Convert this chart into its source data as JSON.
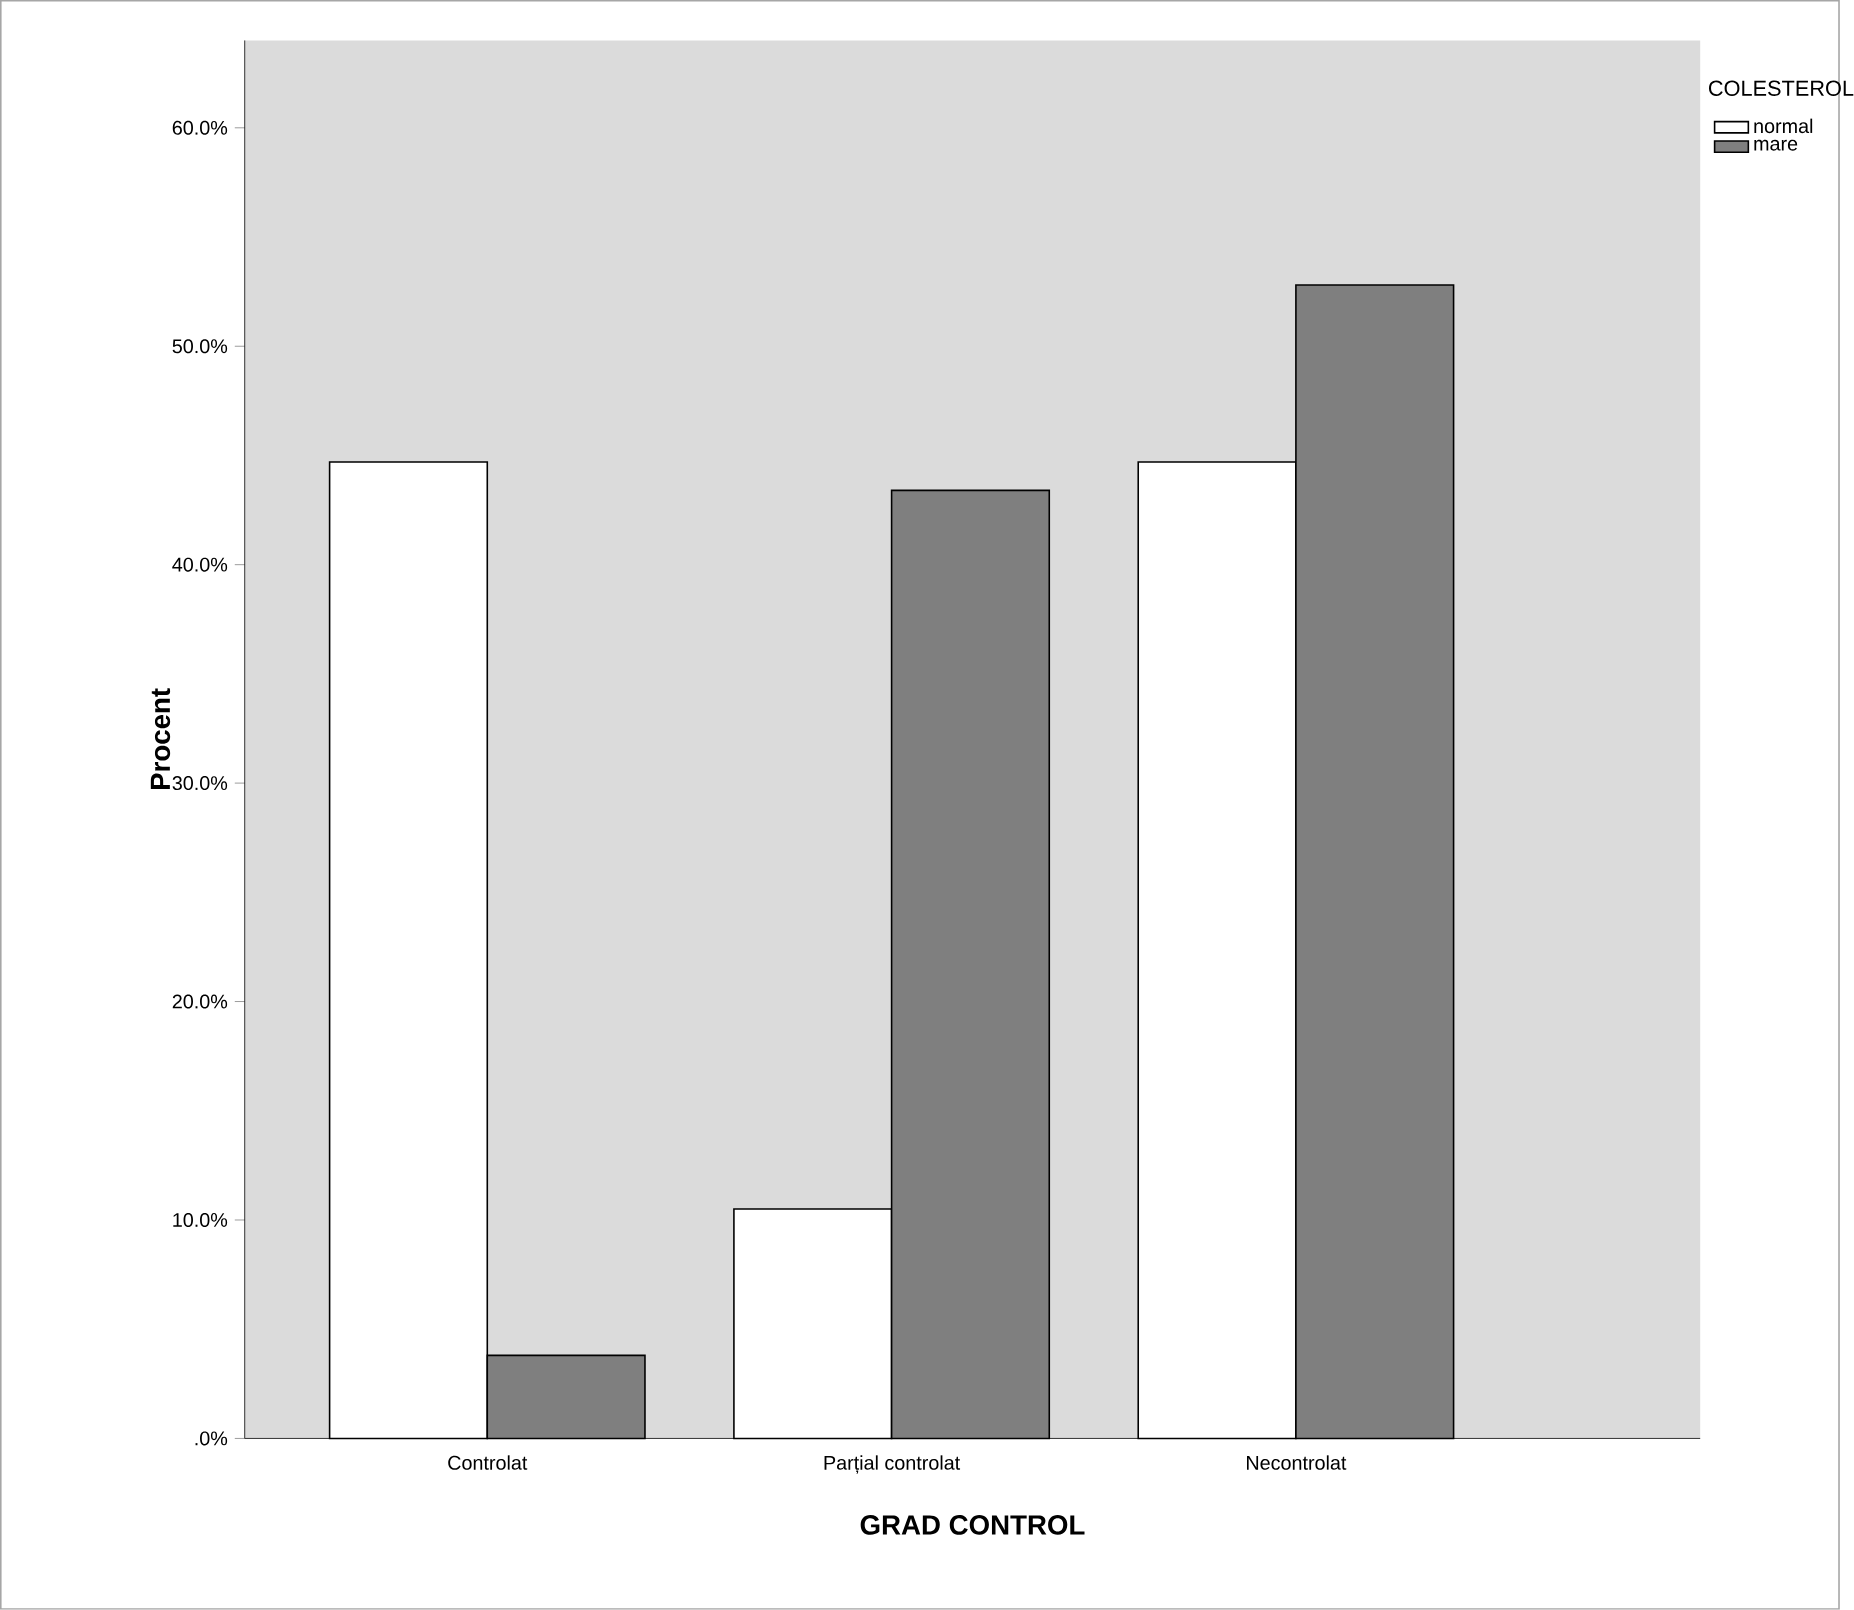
{
  "chart_data": {
    "type": "bar",
    "xlabel": "GRAD CONTROL",
    "ylabel": "Procent",
    "legend_title": "COLESTEROL",
    "categories": [
      "Controlat",
      "Parțial controlat",
      "Necontrolat"
    ],
    "series": [
      {
        "name": "normal",
        "color": "#ffffff",
        "values": [
          44.7,
          10.5,
          44.7
        ]
      },
      {
        "name": "mare",
        "color": "#7f7f7f",
        "values": [
          3.8,
          43.4,
          52.8
        ]
      }
    ],
    "ylim": [
      0,
      64
    ],
    "yticks": [
      {
        "value": 0,
        "label": ".0%"
      },
      {
        "value": 10,
        "label": "10.0%"
      },
      {
        "value": 20,
        "label": "20.0%"
      },
      {
        "value": 30,
        "label": "30.0%"
      },
      {
        "value": 40,
        "label": "40.0%"
      },
      {
        "value": 50,
        "label": "50.0%"
      },
      {
        "value": 60,
        "label": "60.0%"
      }
    ],
    "grid": false,
    "legend": "top right"
  }
}
